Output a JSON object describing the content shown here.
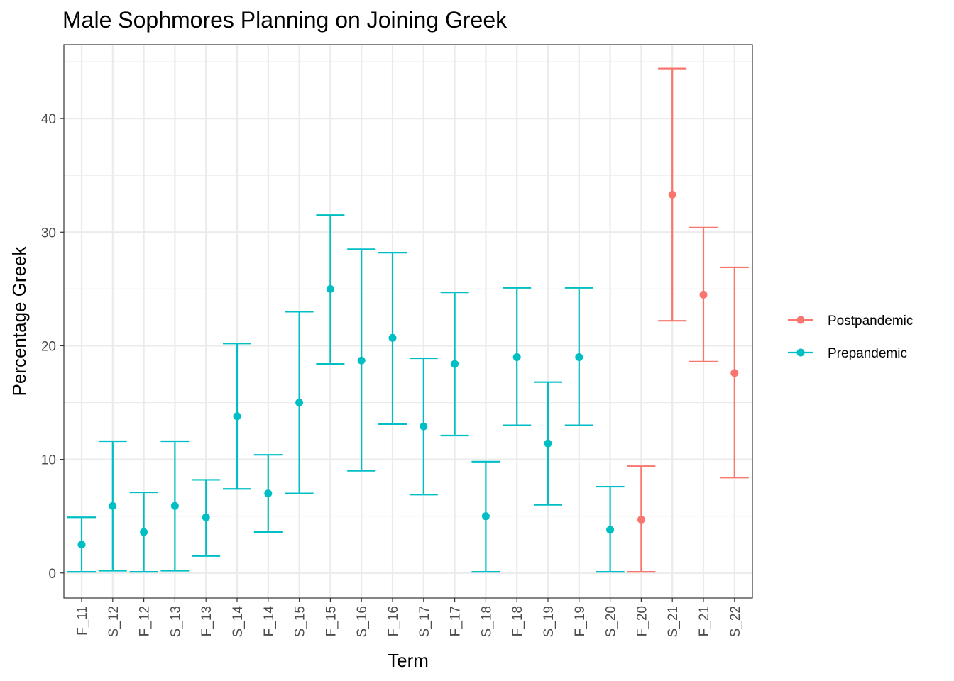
{
  "chart_data": {
    "type": "scatter",
    "title": "Male Sophmores Planning on Joining Greek",
    "xlabel": "Term",
    "ylabel": "Percentage Greek",
    "ylim": [
      -2.2,
      46.5
    ],
    "yticks": [
      0,
      10,
      20,
      30,
      40
    ],
    "grid": true,
    "legend_position": "right",
    "categories": [
      "F_11",
      "S_12",
      "F_12",
      "S_13",
      "F_13",
      "S_14",
      "F_14",
      "S_15",
      "F_15",
      "S_16",
      "F_16",
      "S_17",
      "F_17",
      "S_18",
      "F_18",
      "S_19",
      "F_19",
      "S_20",
      "F_20",
      "S_21",
      "F_21",
      "S_22"
    ],
    "series": [
      {
        "name": "Postpandemic",
        "color": "#F8766D",
        "points": [
          {
            "x": "F_20",
            "y": 4.7,
            "lower": 0.1,
            "upper": 9.4
          },
          {
            "x": "S_21",
            "y": 33.3,
            "lower": 22.2,
            "upper": 44.4
          },
          {
            "x": "F_21",
            "y": 24.5,
            "lower": 18.6,
            "upper": 30.4
          },
          {
            "x": "S_22",
            "y": 17.6,
            "lower": 8.4,
            "upper": 26.9
          }
        ]
      },
      {
        "name": "Prepandemic",
        "color": "#00BFC4",
        "points": [
          {
            "x": "F_11",
            "y": 2.5,
            "lower": 0.1,
            "upper": 4.9
          },
          {
            "x": "S_12",
            "y": 5.9,
            "lower": 0.2,
            "upper": 11.6
          },
          {
            "x": "F_12",
            "y": 3.6,
            "lower": 0.1,
            "upper": 7.1
          },
          {
            "x": "S_13",
            "y": 5.9,
            "lower": 0.2,
            "upper": 11.6
          },
          {
            "x": "F_13",
            "y": 4.9,
            "lower": 1.5,
            "upper": 8.2
          },
          {
            "x": "S_14",
            "y": 13.8,
            "lower": 7.4,
            "upper": 20.2
          },
          {
            "x": "F_14",
            "y": 7.0,
            "lower": 3.6,
            "upper": 10.4
          },
          {
            "x": "S_15",
            "y": 15.0,
            "lower": 7.0,
            "upper": 23.0
          },
          {
            "x": "F_15",
            "y": 25.0,
            "lower": 18.4,
            "upper": 31.5
          },
          {
            "x": "S_16",
            "y": 18.7,
            "lower": 9.0,
            "upper": 28.5
          },
          {
            "x": "F_16",
            "y": 20.7,
            "lower": 13.1,
            "upper": 28.2
          },
          {
            "x": "S_17",
            "y": 12.9,
            "lower": 6.9,
            "upper": 18.9
          },
          {
            "x": "F_17",
            "y": 18.4,
            "lower": 12.1,
            "upper": 24.7
          },
          {
            "x": "S_18",
            "y": 5.0,
            "lower": 0.1,
            "upper": 9.8
          },
          {
            "x": "F_18",
            "y": 19.0,
            "lower": 13.0,
            "upper": 25.1
          },
          {
            "x": "S_19",
            "y": 11.4,
            "lower": 6.0,
            "upper": 16.8
          },
          {
            "x": "F_19",
            "y": 19.0,
            "lower": 13.0,
            "upper": 25.1
          },
          {
            "x": "S_20",
            "y": 3.8,
            "lower": 0.1,
            "upper": 7.6
          }
        ]
      }
    ]
  }
}
